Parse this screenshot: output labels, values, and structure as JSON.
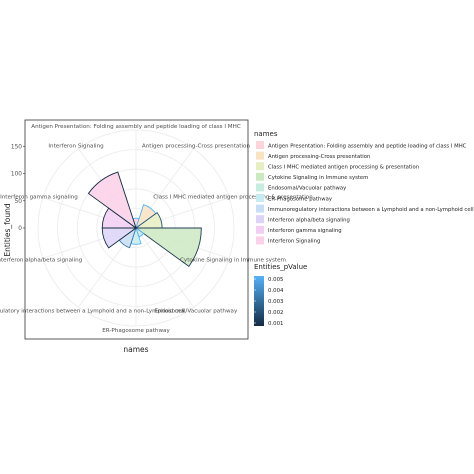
{
  "chart_data": {
    "type": "bar",
    "coord": "polar",
    "xlabel": "names",
    "ylabel": "Entities_found",
    "ylim": [
      0,
      180
    ],
    "y_ticks": [
      "0",
      "50",
      "100",
      "150"
    ],
    "grid": true,
    "legend_position": "right",
    "categories": [
      "Antigen Presentation: Folding assembly and peptide loading of class I MHC",
      "Antigen processing-Cross presentation",
      "Class I MHC mediated antigen processing & presentation",
      "Cytokine Signaling in Immune system",
      "Endosomal/Vacuolar pathway",
      "ER-Phagosome pathway",
      "Immunoregulatory interactions between a Lymphoid and a non-Lymphoid cell",
      "Interferon alpha/beta signaling",
      "Interferon gamma signaling",
      "Interferon Signaling"
    ],
    "axis_labels": [
      "Antigen Presentation: Folding assembly and peptide loading of class I MHC",
      "Antigen processing-Cross presentation",
      "Class I MHC mediated antigen processing & presentation",
      "Cytokine Signaling in Immune system",
      "Endosomal/Vacuolar pathway",
      "ER-Phagosome pathway",
      "Immunoregulatory interactions between a Lymphoid and a non-Lymphoid cell",
      "Interferon alpha/beta signaling",
      "Interferon gamma signaling",
      "Interferon Signaling"
    ],
    "values": [
      18,
      45,
      48,
      120,
      17,
      30,
      38,
      62,
      62,
      108
    ],
    "fill_colors": [
      "#fbd5dc",
      "#f9e3c2",
      "#e6efc2",
      "#cde9c2",
      "#c8ece0",
      "#c6ecf0",
      "#c8def5",
      "#dcd4f7",
      "#f2cef3",
      "#fbd0e9"
    ],
    "outline_colors": [
      "#56b1f7",
      "#56b1f7",
      "#2a5573",
      "#1f3d55",
      "#56b1f7",
      "#56b1f7",
      "#3a7aa8",
      "#1a2f44",
      "#1a2f44",
      "#132b43"
    ],
    "color_legend": {
      "title": "Entities_pValue",
      "ticks": [
        "0.005",
        "0.004",
        "0.003",
        "0.002",
        "0.001"
      ],
      "low_color": "#132b43",
      "high_color": "#56b1f7"
    },
    "fill_legend_title": "names"
  }
}
